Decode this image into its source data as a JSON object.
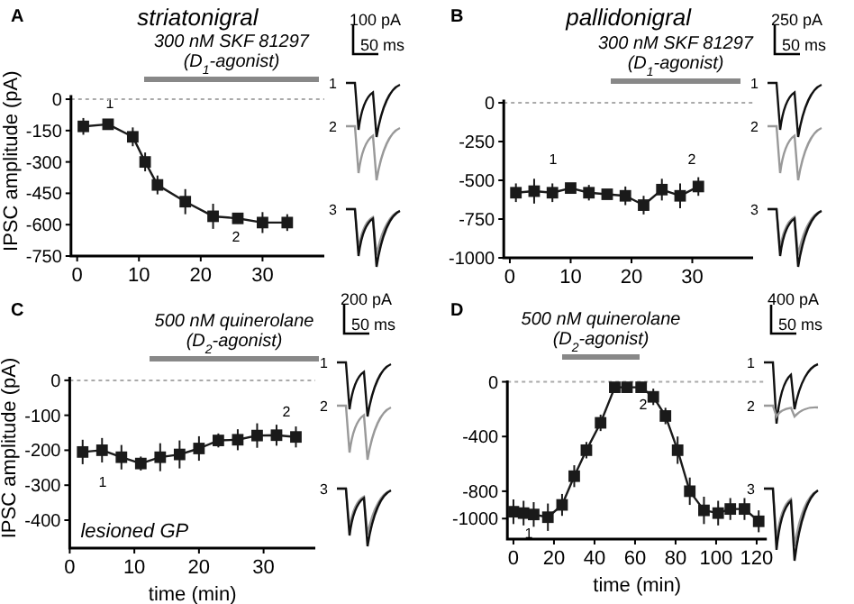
{
  "chart_data": [
    {
      "type": "line",
      "title": "striatonigral",
      "ylabel": "IPSC amplitude (pA)",
      "x": [
        1,
        5,
        9,
        11,
        13,
        17.5,
        22,
        26,
        30,
        34
      ],
      "series": [
        {
          "color": "#1a1a1a",
          "values": [
            -130,
            -120,
            -180,
            -300,
            -410,
            -490,
            -560,
            -570,
            -590,
            -590
          ],
          "errors": [
            40,
            25,
            45,
            45,
            45,
            60,
            60,
            25,
            50,
            40
          ]
        }
      ],
      "xlim": [
        -1,
        40
      ],
      "xticks": [
        0,
        10,
        20,
        30
      ],
      "ylim": [
        -750,
        20
      ],
      "yticks": [
        -750,
        -600,
        -450,
        -300,
        -150,
        0
      ],
      "marker": "square",
      "line_style": "solid",
      "grid": false,
      "ref_lines": [
        {
          "axis": "y",
          "value": 0,
          "color": "#aaaaaa",
          "line_style": "dotted"
        }
      ],
      "annotations": [
        "A",
        "100 pA",
        "50 ms",
        "1",
        "2",
        "3",
        "300 nM SKF 81297",
        "(D$_{1}$-agonist)",
        "1",
        "2"
      ]
    },
    {
      "type": "line",
      "title": "pallidonigral",
      "x": [
        1,
        4,
        7,
        10,
        13,
        16,
        19,
        22,
        25,
        28,
        31
      ],
      "series": [
        {
          "color": "#1a1a1a",
          "values": [
            -580,
            -570,
            -580,
            -550,
            -580,
            -590,
            -600,
            -660,
            -560,
            -600,
            -540
          ],
          "errors": [
            60,
            80,
            60,
            30,
            50,
            30,
            60,
            60,
            70,
            80,
            60
          ]
        }
      ],
      "xlim": [
        -1,
        40
      ],
      "xticks": [
        0,
        10,
        20,
        30
      ],
      "ylim": [
        -1000,
        20
      ],
      "yticks": [
        -1000,
        -750,
        -500,
        -250,
        0
      ],
      "marker": "square",
      "line_style": "solid",
      "grid": false,
      "ref_lines": [
        {
          "axis": "y",
          "value": 0,
          "color": "#aaaaaa",
          "line_style": "dotted"
        }
      ],
      "annotations": [
        "B",
        "250 pA",
        "50 ms",
        "1",
        "2",
        "3",
        "300 nM SKF 81297",
        "(D$_{1}$-agonist)",
        "1",
        "2"
      ]
    },
    {
      "type": "line",
      "xlabel": "time (min)",
      "ylabel": "IPSC amplitude (pA)",
      "x": [
        2,
        5,
        8,
        11,
        14,
        17,
        20,
        23,
        26,
        29,
        32,
        35
      ],
      "series": [
        {
          "color": "#1a1a1a",
          "values": [
            -205,
            -200,
            -220,
            -238,
            -220,
            -212,
            -195,
            -172,
            -170,
            -158,
            -157,
            -162
          ],
          "errors": [
            35,
            35,
            35,
            20,
            40,
            40,
            35,
            20,
            30,
            35,
            30,
            30
          ]
        }
      ],
      "xlim": [
        0,
        38
      ],
      "xticks": [
        0,
        10,
        20,
        30
      ],
      "ylim": [
        -480,
        10
      ],
      "yticks": [
        -400,
        -300,
        -200,
        -100,
        0
      ],
      "marker": "square",
      "line_style": "solid",
      "grid": false,
      "ref_lines": [
        {
          "axis": "y",
          "value": 0,
          "color": "#aaaaaa",
          "line_style": "dotted"
        }
      ],
      "annotations": [
        "C",
        "200 pA",
        "50 ms",
        "1",
        "2",
        "3",
        "500 nM quinerolane",
        "(D$_{2}$-agonist)",
        "1",
        "2",
        "lesioned GP"
      ]
    },
    {
      "type": "line",
      "xlabel": "time (min)",
      "x": [
        0,
        5,
        10,
        17,
        24,
        30,
        36,
        43,
        50,
        56,
        63,
        69,
        75,
        81,
        87,
        94,
        101,
        107,
        114,
        121
      ],
      "series": [
        {
          "color": "#1a1a1a",
          "values": [
            -950,
            -960,
            -970,
            -990,
            -900,
            -690,
            -500,
            -300,
            -40,
            -40,
            -40,
            -110,
            -250,
            -500,
            -800,
            -940,
            -960,
            -930,
            -930,
            -1020
          ],
          "errors": [
            90,
            90,
            90,
            100,
            80,
            80,
            60,
            60,
            30,
            30,
            30,
            60,
            60,
            100,
            100,
            100,
            90,
            80,
            80,
            80
          ]
        }
      ],
      "xlim": [
        -3,
        125
      ],
      "xticks": [
        0,
        20,
        40,
        60,
        80,
        100,
        120
      ],
      "ylim": [
        -1150,
        10
      ],
      "yticks": [
        -1000,
        -800,
        -400,
        0
      ],
      "marker": "square",
      "line_style": "solid",
      "grid": false,
      "ref_lines": [
        {
          "axis": "y",
          "value": 0,
          "color": "#aaaaaa",
          "line_style": "dotted"
        }
      ],
      "annotations": [
        "D",
        "400 pA",
        "50 ms",
        "1",
        "2",
        "3",
        "500 nM quinerolane",
        "(D$_{2}$-agonist)",
        "1",
        "2"
      ]
    }
  ]
}
